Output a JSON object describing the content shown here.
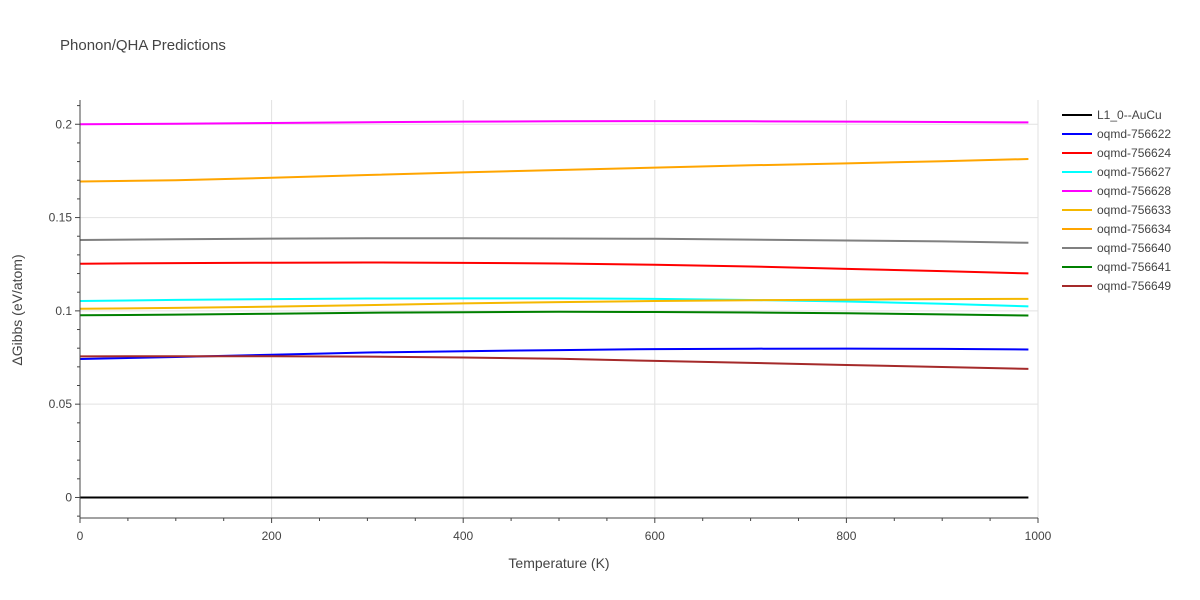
{
  "chart_data": {
    "type": "line",
    "title": "Phonon/QHA Predictions",
    "xlabel": "Temperature (K)",
    "ylabel": "ΔGibbs (eV/atom)",
    "xlim": [
      0,
      1000
    ],
    "ylim": [
      -0.011,
      0.213
    ],
    "x_ticks": [
      0,
      200,
      400,
      600,
      800,
      1000
    ],
    "x_tick_labels": [
      "0",
      "200",
      "400",
      "600",
      "800",
      "1000"
    ],
    "y_ticks": [
      0,
      0.05,
      0.1,
      0.15,
      0.2
    ],
    "y_tick_labels": [
      "0",
      "0.05",
      "0.1",
      "0.15",
      "0.2"
    ],
    "grid": true,
    "legend_position": "right",
    "x": [
      0,
      100,
      200,
      300,
      400,
      500,
      600,
      700,
      800,
      900,
      990
    ],
    "series": [
      {
        "name": "L1_0--AuCu",
        "color": "#000000",
        "values": [
          0,
          0,
          0,
          0,
          0,
          0,
          0,
          0,
          0,
          0,
          0
        ]
      },
      {
        "name": "oqmd-756622",
        "color": "#0000ff",
        "values": [
          0.0742,
          0.0753,
          0.0765,
          0.0777,
          0.0784,
          0.079,
          0.0795,
          0.0797,
          0.0798,
          0.0796,
          0.0793
        ]
      },
      {
        "name": "oqmd-756624",
        "color": "#ff0000",
        "values": [
          0.1253,
          0.1256,
          0.1258,
          0.1259,
          0.1257,
          0.1254,
          0.1247,
          0.1238,
          0.1225,
          0.1213,
          0.1201
        ]
      },
      {
        "name": "oqmd-756627",
        "color": "#00ffff",
        "values": [
          0.1053,
          0.1059,
          0.1063,
          0.1066,
          0.1067,
          0.1067,
          0.1064,
          0.1058,
          0.105,
          0.1038,
          0.1024
        ]
      },
      {
        "name": "oqmd-756628",
        "color": "#ff00ff",
        "values": [
          0.2,
          0.2003,
          0.2007,
          0.2011,
          0.2014,
          0.2016,
          0.2017,
          0.2016,
          0.2014,
          0.2012,
          0.201
        ]
      },
      {
        "name": "oqmd-756633",
        "color": "#f5b800",
        "values": [
          0.1011,
          0.1016,
          0.1023,
          0.1031,
          0.104,
          0.1047,
          0.1053,
          0.1057,
          0.106,
          0.1063,
          0.1064
        ]
      },
      {
        "name": "oqmd-756634",
        "color": "#ffa500",
        "values": [
          0.1693,
          0.17,
          0.1713,
          0.1728,
          0.1742,
          0.1755,
          0.1768,
          0.178,
          0.179,
          0.1802,
          0.1814
        ]
      },
      {
        "name": "oqmd-756640",
        "color": "#808080",
        "values": [
          0.138,
          0.1384,
          0.1387,
          0.1389,
          0.1389,
          0.1388,
          0.1386,
          0.1382,
          0.1377,
          0.1372,
          0.1365
        ]
      },
      {
        "name": "oqmd-756641",
        "color": "#008000",
        "values": [
          0.0976,
          0.098,
          0.0985,
          0.099,
          0.0993,
          0.0995,
          0.0994,
          0.0991,
          0.0987,
          0.0981,
          0.0975
        ]
      },
      {
        "name": "oqmd-756649",
        "color": "#a52a2a",
        "values": [
          0.0756,
          0.0757,
          0.0757,
          0.0755,
          0.075,
          0.0743,
          0.0732,
          0.0721,
          0.071,
          0.0699,
          0.0689
        ]
      }
    ]
  }
}
